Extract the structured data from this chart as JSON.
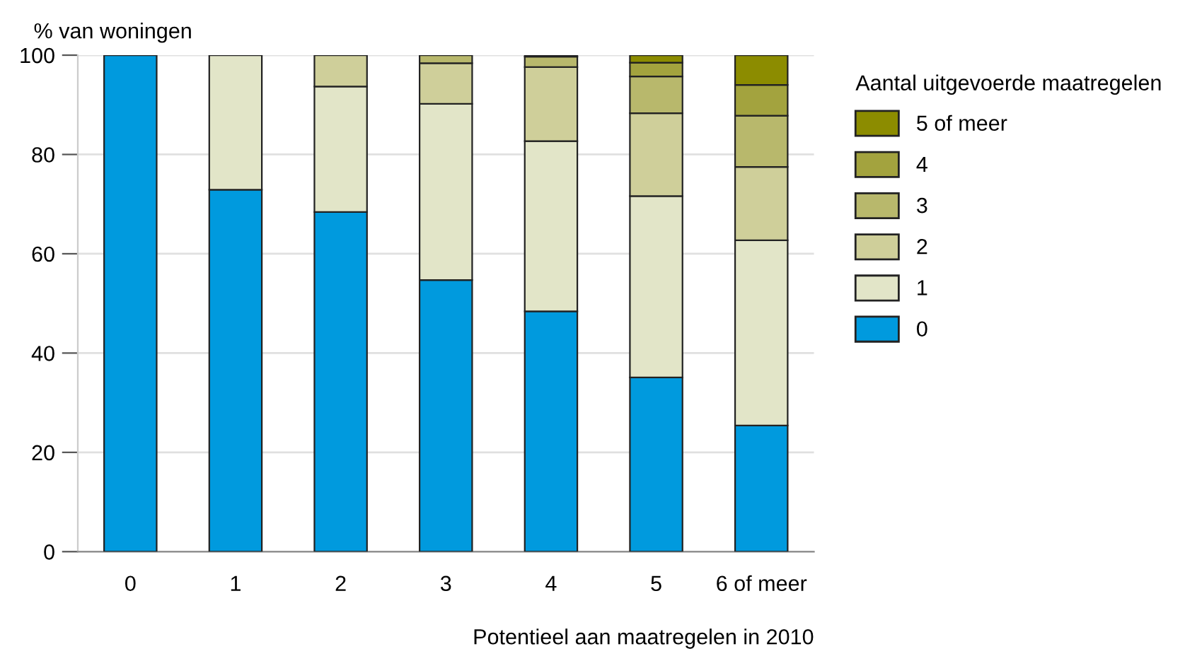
{
  "chart_data": {
    "type": "bar",
    "stacked": true,
    "ylabel": "% van woningen",
    "xlabel": "Potentieel aan maatregelen in 2010",
    "legend_title": "Aantal uitgevoerde maatregelen",
    "legend": "right",
    "grid": "y",
    "categories": [
      "0",
      "1",
      "2",
      "3",
      "4",
      "5",
      "6 of meer"
    ],
    "ylim": [
      0,
      100
    ],
    "yticks": [
      0,
      20,
      40,
      60,
      80,
      100
    ],
    "series": [
      {
        "name": "0",
        "color": "#009ade",
        "values": [
          100,
          72.9,
          68.4,
          54.7,
          48.4,
          35.1,
          25.4
        ]
      },
      {
        "name": "1",
        "color": "#e2e5c8",
        "values": [
          null,
          27.1,
          25.3,
          35.5,
          34.3,
          36.5,
          37.3
        ]
      },
      {
        "name": "2",
        "color": "#cfcf9a",
        "values": [
          null,
          null,
          6.3,
          8.2,
          14.9,
          16.7,
          14.8
        ]
      },
      {
        "name": "3",
        "color": "#b8b86c",
        "values": [
          null,
          null,
          null,
          1.6,
          2.1,
          7.4,
          10.3
        ]
      },
      {
        "name": "4",
        "color": "#a3a33e",
        "values": [
          null,
          null,
          null,
          null,
          0.3,
          2.8,
          6.2
        ]
      },
      {
        "name": "5 of meer",
        "color": "#8c8c00",
        "values": [
          null,
          null,
          null,
          null,
          null,
          1.5,
          6.0
        ]
      }
    ]
  }
}
